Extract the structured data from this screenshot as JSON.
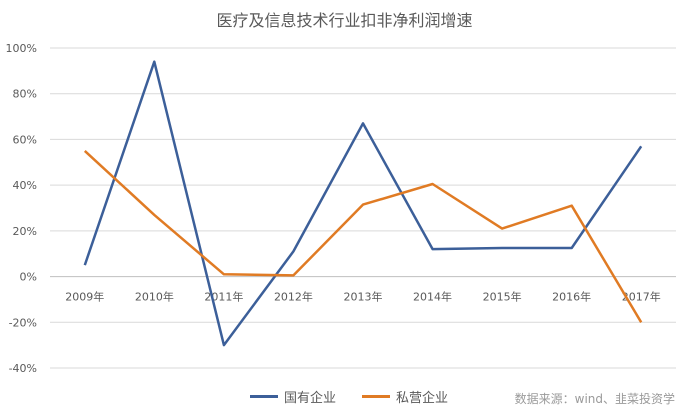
{
  "chart_data": {
    "type": "line",
    "title": "医疗及信息技术行业扣非净利润增速",
    "categories": [
      "2009年",
      "2010年",
      "2011年",
      "2012年",
      "2013年",
      "2014年",
      "2015年",
      "2016年",
      "2017年"
    ],
    "series": [
      {
        "name": "国有企业",
        "color": "#3c5f99",
        "values": [
          5,
          94,
          -30,
          11,
          67,
          12,
          12.5,
          12.5,
          57
        ]
      },
      {
        "name": "私营企业",
        "color": "#e07b24",
        "values": [
          55,
          27,
          1,
          0.5,
          31.5,
          40.5,
          21,
          31,
          -20
        ]
      }
    ],
    "ylim": [
      -40,
      100
    ],
    "yticks": [
      -40,
      -20,
      0,
      20,
      40,
      60,
      80,
      100
    ],
    "ytick_labels": [
      "-40%",
      "-20%",
      "0%",
      "20%",
      "40%",
      "60%",
      "80%",
      "100%"
    ],
    "grid": true,
    "legend_position": "bottom"
  },
  "source_note": "数据来源：wind、韭菜投资学"
}
